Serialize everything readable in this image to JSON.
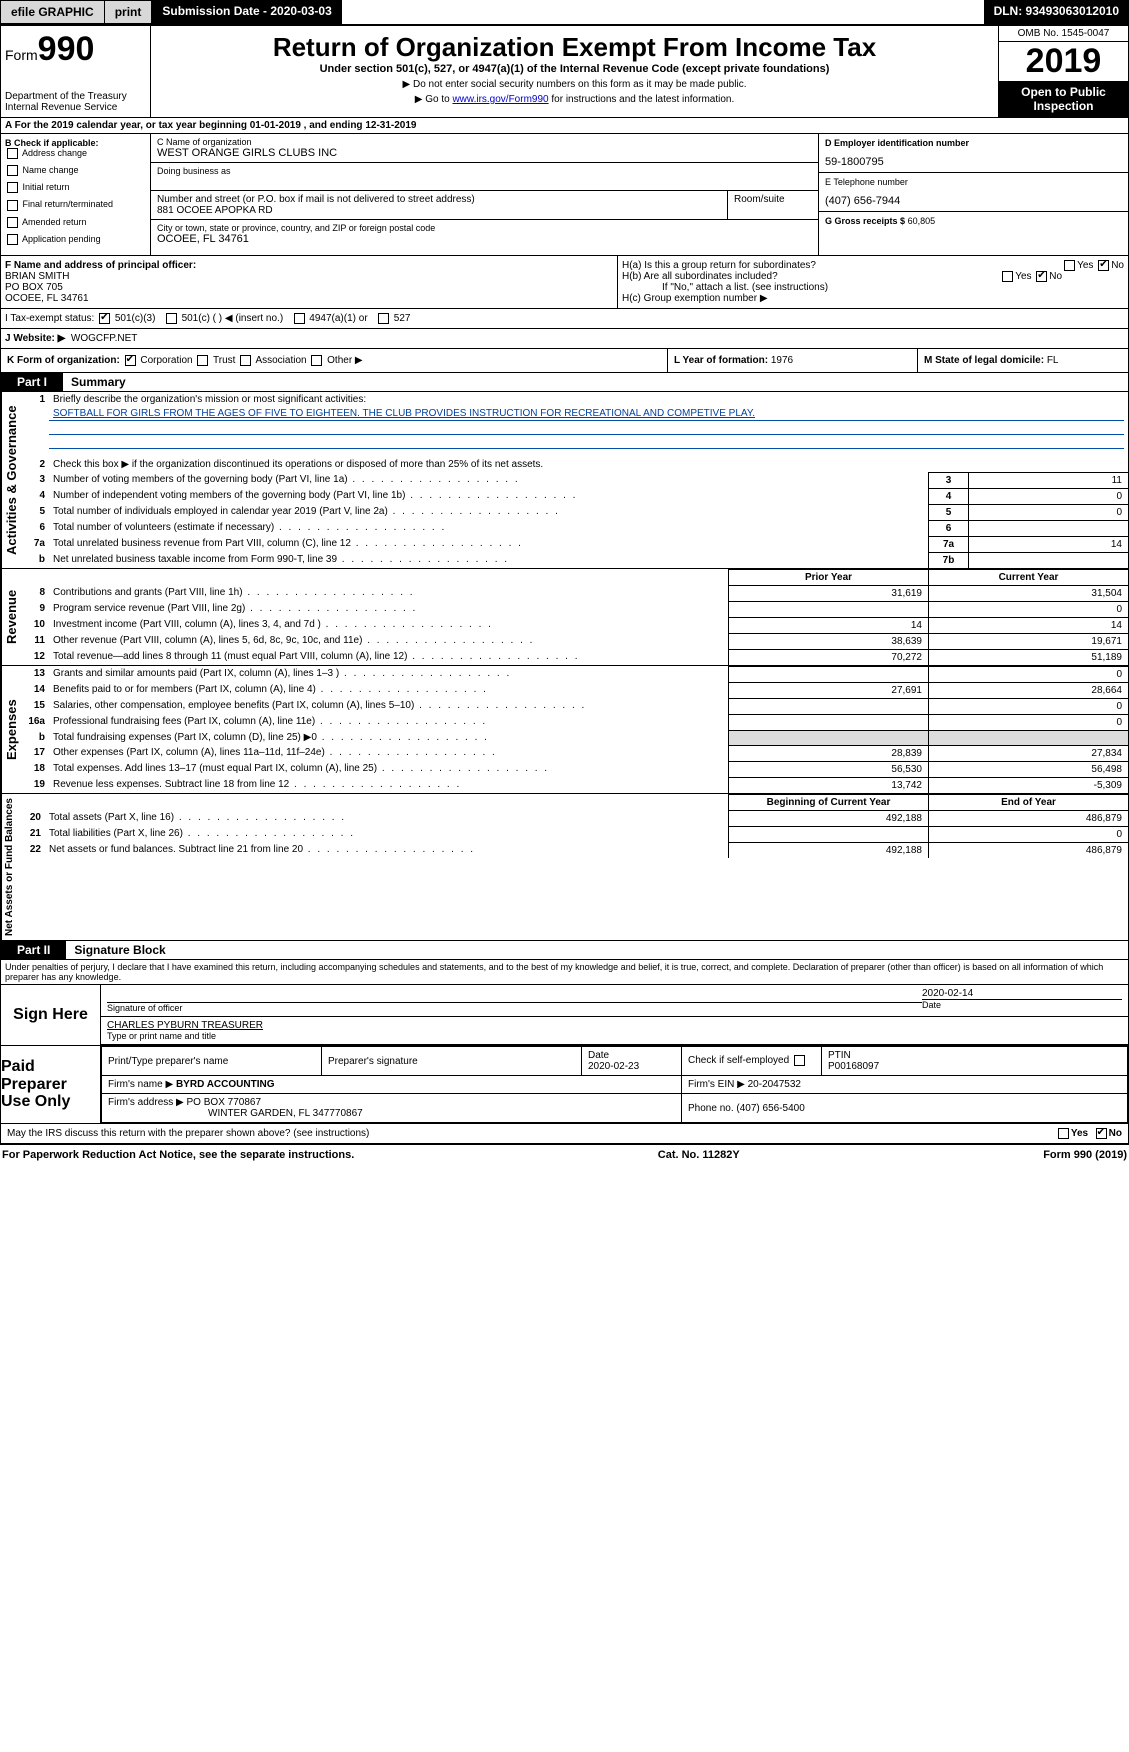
{
  "topbar": {
    "efile": "efile GRAPHIC",
    "print": "print",
    "submission": "Submission Date - 2020-03-03",
    "dln": "DLN: 93493063012010"
  },
  "header": {
    "form_prefix": "Form",
    "form_num": "990",
    "dept": "Department of the Treasury",
    "irs": "Internal Revenue Service",
    "title": "Return of Organization Exempt From Income Tax",
    "sub": "Under section 501(c), 527, or 4947(a)(1) of the Internal Revenue Code (except private foundations)",
    "note1": "▶ Do not enter social security numbers on this form as it may be made public.",
    "note2_pre": "▶ Go to ",
    "note2_link": "www.irs.gov/Form990",
    "note2_post": " for instructions and the latest information.",
    "omb": "OMB No. 1545-0047",
    "year": "2019",
    "open": "Open to Public Inspection"
  },
  "rowA": "A   For the 2019 calendar year, or tax year beginning 01-01-2019      , and ending 12-31-2019",
  "colB": {
    "title": "B Check if applicable:",
    "items": [
      "Address change",
      "Name change",
      "Initial return",
      "Final return/terminated",
      "Amended return",
      "Application pending"
    ]
  },
  "colC": {
    "name_label": "C Name of organization",
    "name": "WEST ORANGE GIRLS CLUBS INC",
    "dba_label": "Doing business as",
    "street_label": "Number and street (or P.O. box if mail is not delivered to street address)",
    "room_label": "Room/suite",
    "street": "881 OCOEE APOPKA RD",
    "city_label": "City or town, state or province, country, and ZIP or foreign postal code",
    "city": "OCOEE, FL  34761"
  },
  "colD": {
    "ein_label": "D Employer identification number",
    "ein": "59-1800795",
    "phone_label": "E Telephone number",
    "phone": "(407) 656-7944",
    "gross_label": "G Gross receipts $",
    "gross": "60,805"
  },
  "rowF": {
    "label": "F Name and address of principal officer:",
    "name": "BRIAN SMITH",
    "po": "PO BOX 705",
    "city": "OCOEE, FL  34761"
  },
  "rowH": {
    "a": "H(a)   Is this a group return for subordinates?",
    "b": "H(b)   Are all subordinates included?",
    "b_note": "If \"No,\" attach a list. (see instructions)",
    "c": "H(c)   Group exemption number ▶",
    "yes": "Yes",
    "no": "No"
  },
  "rowI": {
    "label": "I    Tax-exempt status:",
    "o1": "501(c)(3)",
    "o2": "501(c) (  ) ◀ (insert no.)",
    "o3": "4947(a)(1) or",
    "o4": "527"
  },
  "rowJ": {
    "label": "J    Website: ▶",
    "val": "WOGCFP.NET"
  },
  "rowK": "K Form of organization:",
  "rowK_opts": [
    "Corporation",
    "Trust",
    "Association",
    "Other ▶"
  ],
  "rowL": {
    "label": "L Year of formation:",
    "val": "1976"
  },
  "rowM": {
    "label": "M State of legal domicile:",
    "val": "FL"
  },
  "part1": {
    "tab": "Part I",
    "title": "Summary"
  },
  "summary": {
    "l1": "Briefly describe the organization's mission or most significant activities:",
    "mission": "SOFTBALL FOR GIRLS FROM THE AGES OF FIVE TO EIGHTEEN. THE CLUB PROVIDES INSTRUCTION FOR RECREATIONAL AND COMPETIVE PLAY.",
    "l2": "Check this box ▶   if the organization discontinued its operations or disposed of more than 25% of its net assets.",
    "rows": [
      {
        "n": "3",
        "d": "Number of voting members of the governing body (Part VI, line 1a)",
        "box": "3",
        "v": "11"
      },
      {
        "n": "4",
        "d": "Number of independent voting members of the governing body (Part VI, line 1b)",
        "box": "4",
        "v": "0"
      },
      {
        "n": "5",
        "d": "Total number of individuals employed in calendar year 2019 (Part V, line 2a)",
        "box": "5",
        "v": "0"
      },
      {
        "n": "6",
        "d": "Total number of volunteers (estimate if necessary)",
        "box": "6",
        "v": ""
      },
      {
        "n": "7a",
        "d": "Total unrelated business revenue from Part VIII, column (C), line 12",
        "box": "7a",
        "v": "14"
      },
      {
        "n": "b",
        "d": "Net unrelated business taxable income from Form 990-T, line 39",
        "box": "7b",
        "v": ""
      }
    ]
  },
  "twoColHdr": {
    "prior": "Prior Year",
    "current": "Current Year"
  },
  "revenue": [
    {
      "n": "8",
      "d": "Contributions and grants (Part VIII, line 1h)",
      "p": "31,619",
      "c": "31,504"
    },
    {
      "n": "9",
      "d": "Program service revenue (Part VIII, line 2g)",
      "p": "",
      "c": "0"
    },
    {
      "n": "10",
      "d": "Investment income (Part VIII, column (A), lines 3, 4, and 7d )",
      "p": "14",
      "c": "14"
    },
    {
      "n": "11",
      "d": "Other revenue (Part VIII, column (A), lines 5, 6d, 8c, 9c, 10c, and 11e)",
      "p": "38,639",
      "c": "19,671"
    },
    {
      "n": "12",
      "d": "Total revenue—add lines 8 through 11 (must equal Part VIII, column (A), line 12)",
      "p": "70,272",
      "c": "51,189"
    }
  ],
  "expenses": [
    {
      "n": "13",
      "d": "Grants and similar amounts paid (Part IX, column (A), lines 1–3 )",
      "p": "",
      "c": "0"
    },
    {
      "n": "14",
      "d": "Benefits paid to or for members (Part IX, column (A), line 4)",
      "p": "27,691",
      "c": "28,664"
    },
    {
      "n": "15",
      "d": "Salaries, other compensation, employee benefits (Part IX, column (A), lines 5–10)",
      "p": "",
      "c": "0"
    },
    {
      "n": "16a",
      "d": "Professional fundraising fees (Part IX, column (A), line 11e)",
      "p": "",
      "c": "0"
    },
    {
      "n": "b",
      "d": "Total fundraising expenses (Part IX, column (D), line 25) ▶0",
      "p": "shade",
      "c": "shade"
    },
    {
      "n": "17",
      "d": "Other expenses (Part IX, column (A), lines 11a–11d, 11f–24e)",
      "p": "28,839",
      "c": "27,834"
    },
    {
      "n": "18",
      "d": "Total expenses. Add lines 13–17 (must equal Part IX, column (A), line 25)",
      "p": "56,530",
      "c": "56,498"
    },
    {
      "n": "19",
      "d": "Revenue less expenses. Subtract line 18 from line 12",
      "p": "13,742",
      "c": "-5,309"
    }
  ],
  "netHdr": {
    "b": "Beginning of Current Year",
    "e": "End of Year"
  },
  "net": [
    {
      "n": "20",
      "d": "Total assets (Part X, line 16)",
      "p": "492,188",
      "c": "486,879"
    },
    {
      "n": "21",
      "d": "Total liabilities (Part X, line 26)",
      "p": "",
      "c": "0"
    },
    {
      "n": "22",
      "d": "Net assets or fund balances. Subtract line 21 from line 20",
      "p": "492,188",
      "c": "486,879"
    }
  ],
  "part2": {
    "tab": "Part II",
    "title": "Signature Block"
  },
  "perjury": "Under penalties of perjury, I declare that I have examined this return, including accompanying schedules and statements, and to the best of my knowledge and belief, it is true, correct, and complete. Declaration of preparer (other than officer) is based on all information of which preparer has any knowledge.",
  "sign": {
    "here": "Sign Here",
    "sig_officer": "Signature of officer",
    "date_label": "Date",
    "date": "2020-02-14",
    "name": "CHARLES PYBURN TREASURER",
    "name_label": "Type or print name and title"
  },
  "paid": {
    "label": "Paid Preparer Use Only",
    "h1": "Print/Type preparer's name",
    "h2": "Preparer's signature",
    "h3": "Date",
    "date": "2020-02-23",
    "check": "Check       if self-employed",
    "ptin_l": "PTIN",
    "ptin": "P00168097",
    "firm_l": "Firm's name    ▶",
    "firm": "BYRD ACCOUNTING",
    "ein_l": "Firm's EIN ▶",
    "ein": "20-2047532",
    "addr_l": "Firm's address ▶",
    "addr": "PO BOX 770867",
    "addr2": "WINTER GARDEN, FL  347770867",
    "phone_l": "Phone no.",
    "phone": "(407) 656-5400"
  },
  "may": "May the IRS discuss this return with the preparer shown above? (see instructions)",
  "footer": {
    "left": "For Paperwork Reduction Act Notice, see the separate instructions.",
    "mid": "Cat. No. 11282Y",
    "right": "Form 990 (2019)"
  },
  "vlabels": {
    "gov": "Activities & Governance",
    "rev": "Revenue",
    "exp": "Expenses",
    "net": "Net Assets or Fund Balances"
  }
}
